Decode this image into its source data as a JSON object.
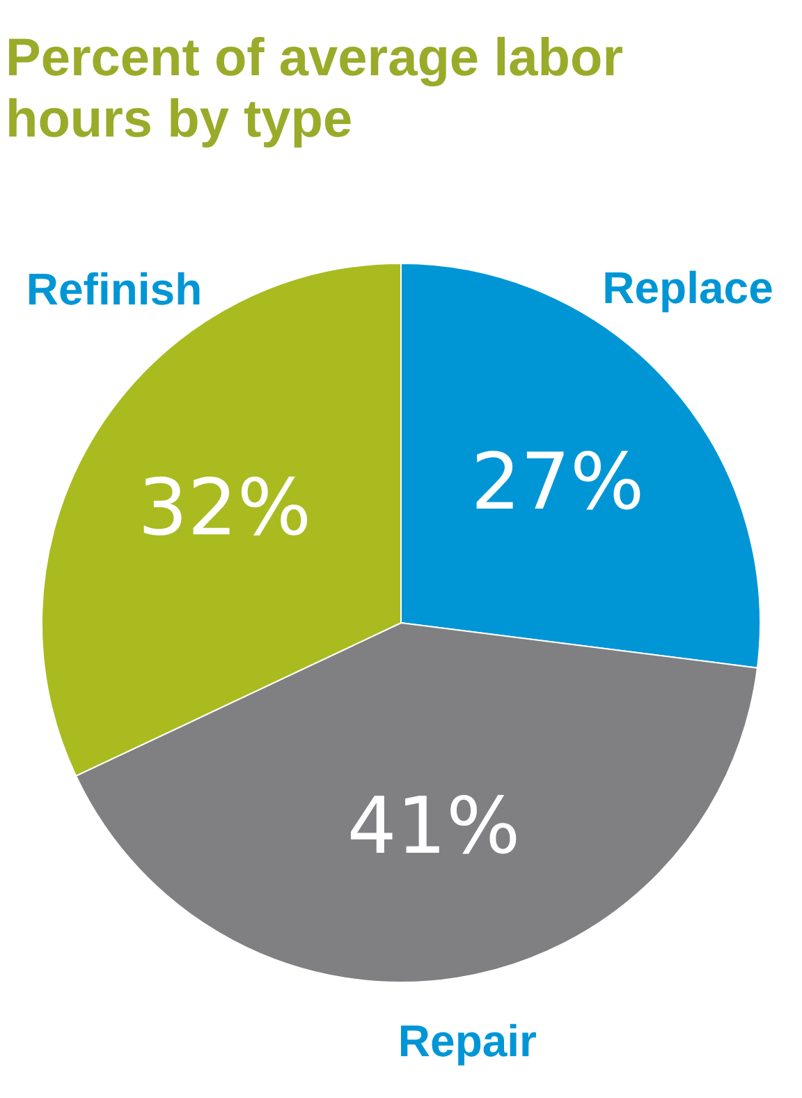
{
  "chart_data": {
    "type": "pie",
    "title": "Percent of average labor hours by type",
    "categories": [
      "Replace",
      "Repair",
      "Refinish"
    ],
    "values": [
      27,
      41,
      32
    ],
    "colors": [
      "#0096d6",
      "#808083",
      "#a9bb1f"
    ],
    "value_labels": [
      "27%",
      "41%",
      "32%"
    ],
    "legend": false
  }
}
